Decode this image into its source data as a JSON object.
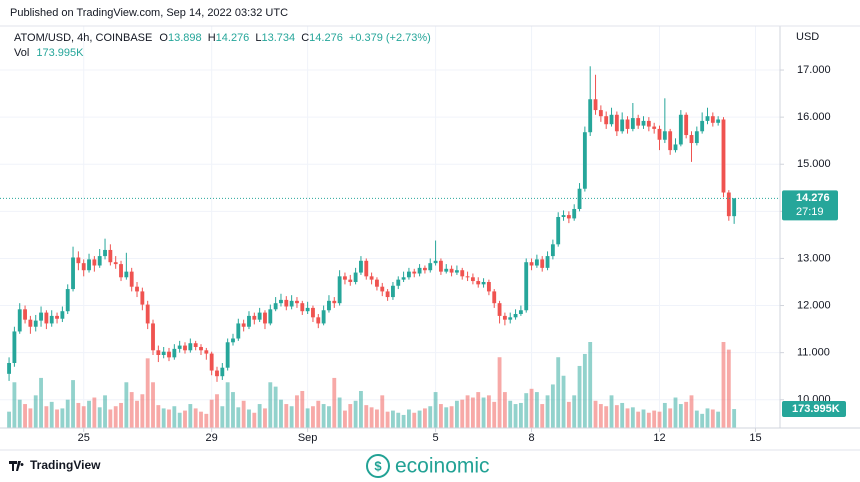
{
  "header": {
    "published": "Published on TradingView.com, Sep 14, 2022 03:32 UTC"
  },
  "chart_data": {
    "type": "candlestick",
    "title": "ATOM/USD, 4h, COINBASE",
    "legend_labels": {
      "open": "O",
      "high": "H",
      "low": "L",
      "close": "C"
    },
    "change": "+0.379 (+2.73%)",
    "y_axis_label": "USD",
    "countdown": "27:19",
    "up_color": "#26a69a",
    "down_color": "#ef5350",
    "open": [
      10.55,
      10.78,
      11.45,
      11.92,
      11.7,
      11.55,
      11.68,
      11.85,
      11.62,
      11.78,
      11.72,
      11.88,
      12.35,
      13.02,
      12.9,
      12.75,
      12.98,
      12.85,
      13.05,
      13.18,
      12.92,
      12.88,
      12.6,
      12.72,
      12.4,
      12.3,
      12.02,
      11.62,
      11.05,
      10.95,
      11.02,
      10.9,
      11.08,
      11.15,
      11.05,
      11.2,
      11.12,
      11.05,
      10.98,
      10.62,
      10.5,
      10.68,
      11.22,
      11.3,
      11.62,
      11.55,
      11.78,
      11.7,
      11.85,
      11.62,
      11.92,
      12.05,
      12.12,
      11.98,
      12.1,
      12.05,
      11.88,
      11.95,
      11.75,
      11.62,
      11.9,
      12.1,
      12.05,
      12.62,
      12.55,
      12.5,
      12.7,
      12.95,
      12.62,
      12.55,
      12.4,
      12.3,
      12.18,
      12.42,
      12.55,
      12.6,
      12.72,
      12.68,
      12.8,
      12.75,
      12.9,
      12.95,
      12.72,
      12.78,
      12.7,
      12.75,
      12.62,
      12.6,
      12.52,
      12.45,
      12.5,
      12.3,
      12.05,
      11.78,
      11.7,
      11.75,
      11.82,
      11.9,
      12.92,
      12.85,
      12.98,
      12.8,
      13.05,
      13.3,
      13.88,
      13.92,
      13.85,
      14.05,
      14.48,
      15.68,
      16.38,
      16.15,
      16.02,
      15.85,
      16.05,
      15.7,
      15.95,
      15.75,
      15.98,
      15.82,
      15.92,
      15.8,
      15.75,
      15.52,
      15.7,
      15.3,
      15.42,
      16.05,
      15.62,
      15.45,
      15.7,
      15.92,
      16.02,
      15.88,
      15.95,
      14.4,
      13.898
    ],
    "high": [
      10.9,
      11.55,
      12.05,
      12.0,
      11.78,
      11.8,
      11.98,
      11.9,
      11.9,
      11.85,
      11.98,
      12.45,
      13.25,
      13.15,
      12.98,
      13.1,
      13.05,
      13.2,
      13.42,
      13.3,
      13.05,
      12.95,
      13.12,
      12.8,
      12.5,
      12.38,
      12.1,
      11.7,
      11.15,
      11.12,
      11.1,
      11.18,
      11.25,
      11.22,
      11.3,
      11.25,
      11.18,
      11.1,
      11.02,
      10.7,
      10.78,
      11.3,
      11.4,
      11.72,
      11.7,
      11.88,
      11.85,
      11.95,
      11.9,
      12.02,
      12.18,
      12.25,
      12.2,
      12.22,
      12.18,
      12.1,
      12.08,
      12.0,
      11.82,
      12.0,
      12.22,
      12.18,
      12.75,
      12.7,
      12.65,
      12.8,
      13.05,
      13.0,
      12.7,
      12.6,
      12.48,
      12.35,
      12.5,
      12.62,
      12.72,
      12.8,
      12.78,
      12.88,
      12.85,
      13.0,
      13.38,
      13.0,
      12.88,
      12.85,
      12.85,
      12.8,
      12.72,
      12.68,
      12.6,
      12.58,
      12.55,
      12.35,
      12.1,
      11.85,
      11.85,
      11.92,
      12.0,
      13.0,
      13.0,
      13.08,
      13.05,
      13.15,
      13.4,
      13.98,
      14.02,
      14.0,
      14.15,
      14.6,
      15.8,
      17.08,
      16.9,
      16.25,
      16.12,
      16.2,
      16.12,
      16.1,
      16.02,
      16.3,
      16.05,
      16.02,
      16.0,
      15.88,
      15.82,
      16.4,
      15.75,
      15.55,
      16.15,
      16.1,
      15.7,
      15.8,
      16.1,
      16.2,
      16.1,
      16.02,
      16.0,
      14.45,
      14.276
    ],
    "low": [
      10.4,
      10.7,
      11.4,
      11.62,
      11.4,
      11.45,
      11.55,
      11.5,
      11.55,
      11.62,
      11.65,
      11.82,
      12.3,
      12.75,
      12.62,
      12.7,
      12.72,
      12.8,
      12.98,
      12.85,
      12.78,
      12.52,
      12.55,
      12.3,
      12.18,
      11.9,
      11.5,
      10.95,
      10.8,
      10.88,
      10.82,
      10.85,
      11.0,
      10.98,
      11.0,
      11.05,
      10.95,
      10.85,
      10.52,
      10.38,
      10.42,
      10.62,
      11.15,
      11.25,
      11.45,
      11.5,
      11.6,
      11.65,
      11.5,
      11.58,
      11.88,
      11.98,
      11.9,
      11.92,
      11.95,
      11.8,
      11.82,
      11.65,
      11.52,
      11.58,
      11.85,
      11.95,
      12.0,
      12.45,
      12.42,
      12.45,
      12.65,
      12.55,
      12.45,
      12.32,
      12.2,
      12.1,
      12.12,
      12.35,
      12.5,
      12.55,
      12.6,
      12.62,
      12.68,
      12.7,
      12.85,
      12.65,
      12.68,
      12.62,
      12.65,
      12.55,
      12.52,
      12.45,
      12.38,
      12.38,
      12.22,
      11.95,
      11.62,
      11.58,
      11.62,
      11.7,
      11.78,
      11.85,
      12.75,
      12.8,
      12.72,
      12.75,
      12.98,
      13.25,
      13.8,
      13.75,
      13.8,
      14.0,
      14.42,
      15.6,
      16.05,
      15.9,
      15.75,
      15.8,
      15.6,
      15.65,
      15.65,
      15.7,
      15.75,
      15.75,
      15.7,
      15.65,
      15.3,
      15.45,
      15.2,
      15.25,
      15.38,
      15.55,
      15.05,
      15.4,
      15.65,
      15.85,
      15.8,
      15.82,
      14.3,
      13.8,
      13.734
    ],
    "close": [
      10.78,
      11.45,
      11.92,
      11.7,
      11.55,
      11.68,
      11.85,
      11.62,
      11.78,
      11.72,
      11.88,
      12.35,
      13.02,
      12.9,
      12.75,
      12.98,
      12.85,
      13.05,
      13.18,
      12.92,
      12.88,
      12.6,
      12.72,
      12.4,
      12.3,
      12.02,
      11.62,
      11.05,
      10.95,
      11.02,
      10.9,
      11.08,
      11.15,
      11.05,
      11.2,
      11.12,
      11.05,
      10.98,
      10.62,
      10.5,
      10.68,
      11.22,
      11.3,
      11.62,
      11.55,
      11.78,
      11.7,
      11.85,
      11.62,
      11.92,
      12.05,
      12.12,
      11.98,
      12.1,
      12.05,
      11.88,
      11.95,
      11.75,
      11.62,
      11.9,
      12.1,
      12.05,
      12.62,
      12.55,
      12.5,
      12.7,
      12.95,
      12.62,
      12.55,
      12.4,
      12.3,
      12.18,
      12.42,
      12.55,
      12.6,
      12.72,
      12.68,
      12.8,
      12.75,
      12.9,
      12.95,
      12.72,
      12.78,
      12.7,
      12.75,
      12.62,
      12.6,
      12.52,
      12.45,
      12.5,
      12.3,
      12.05,
      11.78,
      11.7,
      11.75,
      11.82,
      11.9,
      12.92,
      12.85,
      12.98,
      12.8,
      13.05,
      13.3,
      13.88,
      13.92,
      13.85,
      14.05,
      14.48,
      15.68,
      16.38,
      16.15,
      16.02,
      15.85,
      16.05,
      15.7,
      15.95,
      15.75,
      15.98,
      15.82,
      15.92,
      15.8,
      15.75,
      15.52,
      15.7,
      15.3,
      15.42,
      16.05,
      15.62,
      15.45,
      15.7,
      15.92,
      16.02,
      15.88,
      15.95,
      14.4,
      13.898,
      14.276
    ],
    "volume": {
      "name": "Vol",
      "last_label": "173.995K",
      "values": [
        150000,
        420000,
        260000,
        220000,
        180000,
        300000,
        460000,
        200000,
        240000,
        170000,
        180000,
        260000,
        440000,
        230000,
        200000,
        250000,
        280000,
        190000,
        300000,
        170000,
        200000,
        230000,
        420000,
        330000,
        250000,
        310000,
        640000,
        420000,
        210000,
        180000,
        170000,
        200000,
        140000,
        160000,
        220000,
        180000,
        150000,
        130000,
        260000,
        310000,
        200000,
        420000,
        330000,
        190000,
        250000,
        170000,
        140000,
        220000,
        180000,
        420000,
        380000,
        260000,
        220000,
        200000,
        300000,
        340000,
        180000,
        200000,
        250000,
        220000,
        200000,
        460000,
        280000,
        160000,
        220000,
        250000,
        340000,
        210000,
        190000,
        170000,
        300000,
        150000,
        160000,
        140000,
        120000,
        170000,
        140000,
        160000,
        180000,
        200000,
        330000,
        220000,
        190000,
        200000,
        250000,
        260000,
        300000,
        280000,
        330000,
        280000,
        300000,
        240000,
        650000,
        330000,
        250000,
        220000,
        230000,
        320000,
        360000,
        330000,
        220000,
        300000,
        400000,
        650000,
        480000,
        240000,
        300000,
        570000,
        680000,
        790000,
        250000,
        220000,
        200000,
        300000,
        210000,
        230000,
        180000,
        190000,
        150000,
        170000,
        140000,
        160000,
        150000,
        230000,
        180000,
        280000,
        220000,
        240000,
        300000,
        160000,
        130000,
        180000,
        170000,
        150000,
        790000,
        720000,
        173995
      ]
    },
    "xlim": [
      -1.7,
      144.6
    ],
    "xticks": [
      {
        "value": 14,
        "label": "25"
      },
      {
        "value": 38,
        "label": "29"
      },
      {
        "value": 56,
        "label": "Sep"
      },
      {
        "value": 80,
        "label": "5"
      },
      {
        "value": 98,
        "label": "8"
      },
      {
        "value": 122,
        "label": "12"
      },
      {
        "value": 140,
        "label": "15"
      }
    ],
    "ylim": [
      9.4,
      18.02
    ],
    "yticks": [
      {
        "value": 10,
        "label": "10.000"
      },
      {
        "value": 11,
        "label": "11.000"
      },
      {
        "value": 12,
        "label": "12.000"
      },
      {
        "value": 13,
        "label": "13.000"
      },
      {
        "value": 14,
        "label": "14.000"
      },
      {
        "value": 15,
        "label": "15.000"
      },
      {
        "value": 16,
        "label": "16.000"
      },
      {
        "value": 17,
        "label": "17.000"
      }
    ],
    "grid": true
  },
  "footer": {
    "brand": "TradingView",
    "watermark": "ecoinomic"
  }
}
